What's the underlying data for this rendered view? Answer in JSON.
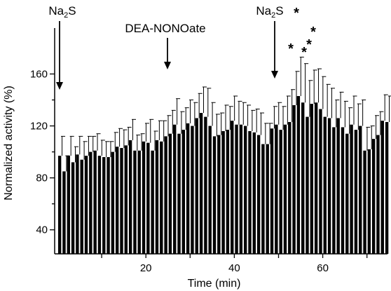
{
  "chart_data": {
    "type": "bar",
    "xlabel": "Time (min)",
    "ylabel": "Normalized activity (%)",
    "xlim": [
      0,
      75
    ],
    "ylim": [
      0,
      175
    ],
    "xticks": [
      20,
      40,
      60
    ],
    "yticks": [
      40,
      80,
      120,
      160
    ],
    "grid": false,
    "error_bars": "upper (SEM), drawn above each bar",
    "x": [
      1,
      2,
      3,
      4,
      5,
      6,
      7,
      8,
      9,
      10,
      11,
      12,
      13,
      14,
      15,
      16,
      17,
      18,
      19,
      20,
      21,
      22,
      23,
      24,
      25,
      26,
      27,
      28,
      29,
      30,
      31,
      32,
      33,
      34,
      35,
      36,
      37,
      38,
      39,
      40,
      41,
      42,
      43,
      44,
      45,
      46,
      47,
      48,
      49,
      50,
      51,
      52,
      53,
      54,
      55,
      56,
      57,
      58,
      59,
      60,
      61,
      62,
      63,
      64,
      65,
      66,
      67,
      68,
      69,
      70,
      71,
      72,
      73,
      74,
      75
    ],
    "values": [
      97,
      85,
      97,
      92,
      98,
      94,
      97,
      100,
      101,
      97,
      96,
      96,
      100,
      104,
      103,
      105,
      109,
      101,
      101,
      108,
      107,
      101,
      109,
      108,
      112,
      114,
      121,
      114,
      117,
      122,
      120,
      126,
      130,
      127,
      120,
      112,
      113,
      116,
      117,
      124,
      121,
      121,
      120,
      116,
      115,
      113,
      106,
      106,
      118,
      121,
      117,
      121,
      123,
      136,
      143,
      138,
      127,
      137,
      138,
      133,
      127,
      126,
      119,
      126,
      119,
      114,
      121,
      117,
      120,
      101,
      102,
      110,
      113,
      124,
      123
    ],
    "error_plus": [
      15,
      12,
      15,
      12,
      14,
      14,
      15,
      12,
      13,
      12,
      12,
      12,
      15,
      14,
      14,
      14,
      16,
      12,
      13,
      14,
      18,
      15,
      15,
      16,
      16,
      18,
      20,
      17,
      17,
      18,
      18,
      19,
      20,
      22,
      18,
      17,
      17,
      20,
      18,
      19,
      18,
      17,
      16,
      16,
      18,
      17,
      16,
      16,
      17,
      17,
      18,
      22,
      25,
      26,
      30,
      30,
      28,
      26,
      26,
      25,
      25,
      23,
      21,
      20,
      20,
      20,
      22,
      20,
      20,
      18,
      18,
      18,
      18,
      20,
      20
    ],
    "annotations": [
      {
        "label_main": "Na",
        "label_sub": "2",
        "label_tail": "S",
        "x": 1
      },
      {
        "label_main": "DEA-NONOate",
        "x": 26
      },
      {
        "label_main": "Na",
        "label_sub": "2",
        "label_tail": "S",
        "x": 50.5
      }
    ],
    "significance_marks": [
      {
        "x": 54,
        "text": "*"
      },
      {
        "x": 55,
        "text": "*"
      },
      {
        "x": 57,
        "text": "*"
      },
      {
        "x": 58,
        "text": "*"
      },
      {
        "x": 59,
        "text": "*"
      }
    ]
  }
}
